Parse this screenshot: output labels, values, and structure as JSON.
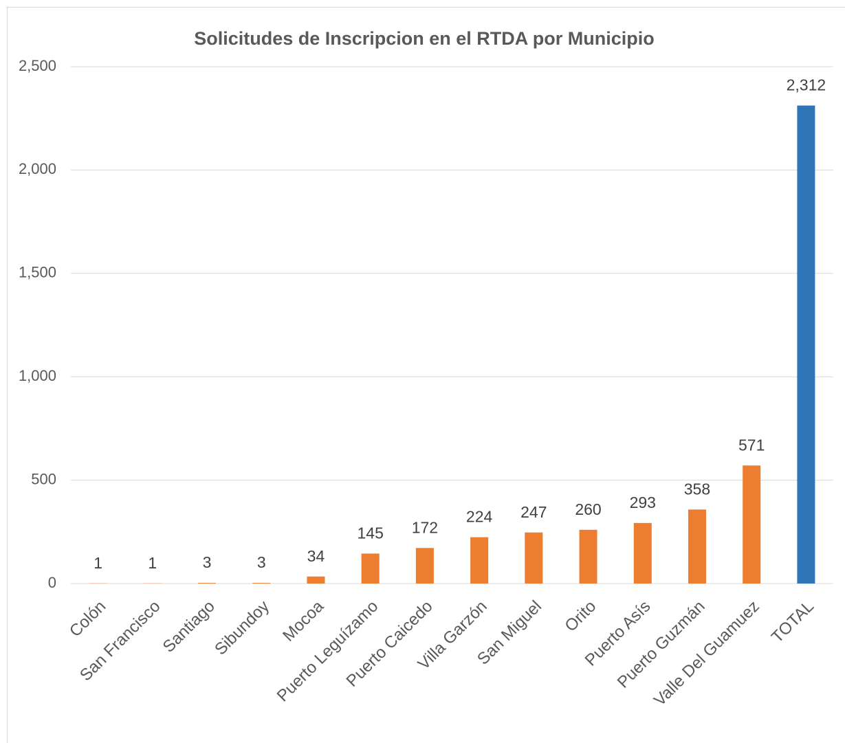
{
  "chart_data": {
    "type": "bar",
    "title": "Solicitudes de Inscripcion en el RTDA por Municipio",
    "categories": [
      "Colón",
      "San Francisco",
      "Santiago",
      "Sibundoy",
      "Mocoa",
      "Puerto Leguízamo",
      "Puerto Caicedo",
      "Villa Garzón",
      "San Miguel",
      "Orito",
      "Puerto Asís",
      "Puerto Guzmán",
      "Valle Del Guamuez",
      "TOTAL"
    ],
    "values": [
      1,
      1,
      3,
      3,
      34,
      145,
      172,
      224,
      247,
      260,
      293,
      358,
      571,
      2312
    ],
    "value_labels": [
      "1",
      "1",
      "3",
      "3",
      "34",
      "145",
      "172",
      "224",
      "247",
      "260",
      "293",
      "358",
      "571",
      "2,312"
    ],
    "colors": [
      "#ed7d31",
      "#ed7d31",
      "#ed7d31",
      "#ed7d31",
      "#ed7d31",
      "#ed7d31",
      "#ed7d31",
      "#ed7d31",
      "#ed7d31",
      "#ed7d31",
      "#ed7d31",
      "#ed7d31",
      "#ed7d31",
      "#2e75b6"
    ],
    "ylim": [
      0,
      2500
    ],
    "yticks": [
      0,
      500,
      {
        "value": 1000,
        "label": "1,000"
      },
      {
        "value": 1500,
        "label": "1,500"
      },
      {
        "value": 2000,
        "label": "2,000"
      },
      {
        "value": 2500,
        "label": "2,500"
      }
    ],
    "grid": true
  }
}
